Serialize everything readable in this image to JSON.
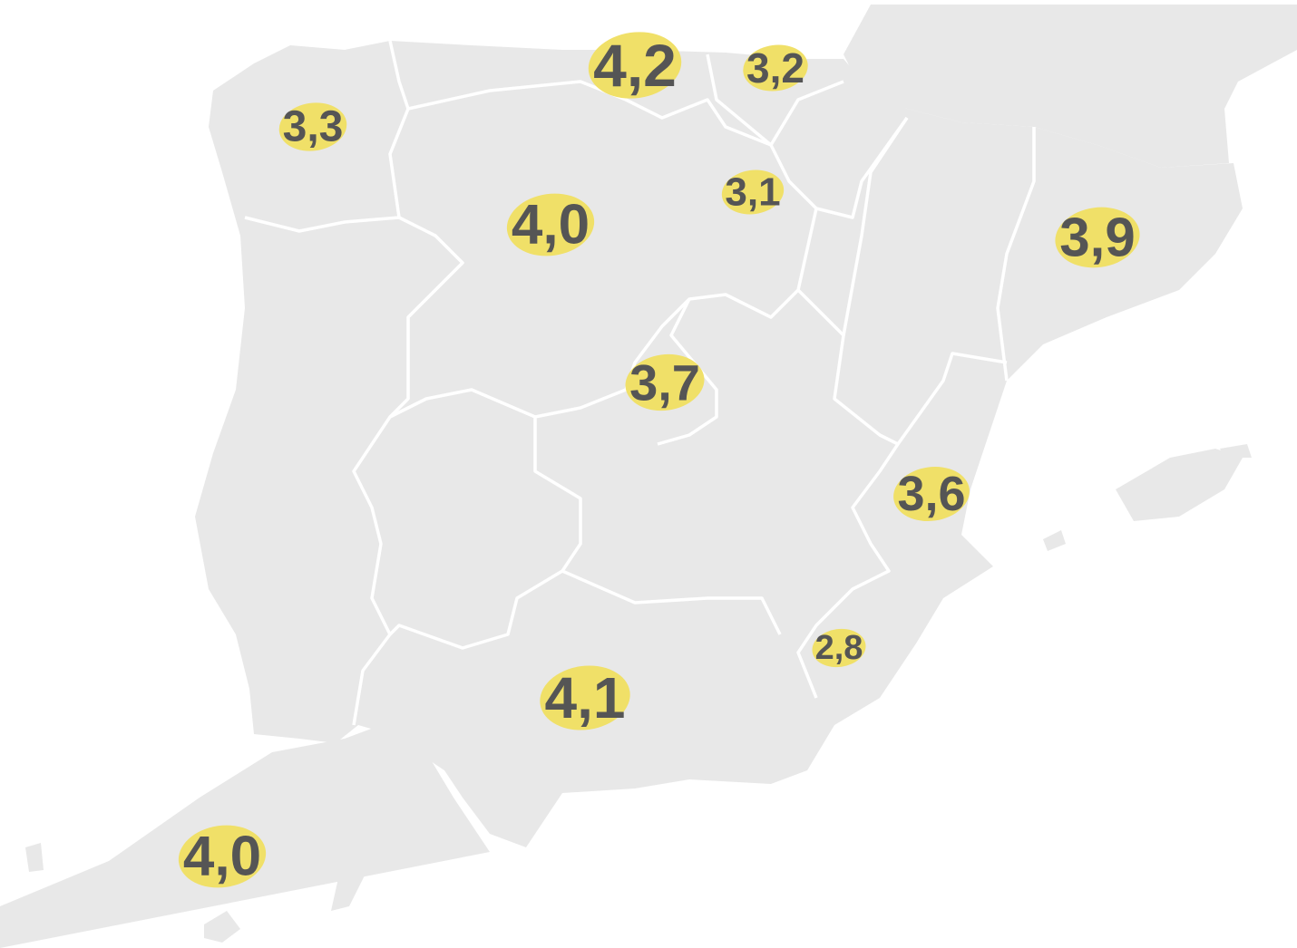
{
  "regions": [
    {
      "value": 3.3,
      "value_label": "3,3"
    },
    {
      "value": 4.2,
      "value_label": "4,2"
    },
    {
      "value": 3.2,
      "value_label": "3,2"
    },
    {
      "value": 4.0,
      "value_label": "4,0"
    },
    {
      "value": 3.1,
      "value_label": "3,1"
    },
    {
      "value": 3.9,
      "value_label": "3,9"
    },
    {
      "value": 3.7,
      "value_label": "3,7"
    },
    {
      "value": 3.6,
      "value_label": "3,6"
    },
    {
      "value": 2.8,
      "value_label": "2,8"
    },
    {
      "value": 4.1,
      "value_label": "4,1"
    },
    {
      "value": 4.0,
      "value_label": "4,0"
    }
  ]
}
